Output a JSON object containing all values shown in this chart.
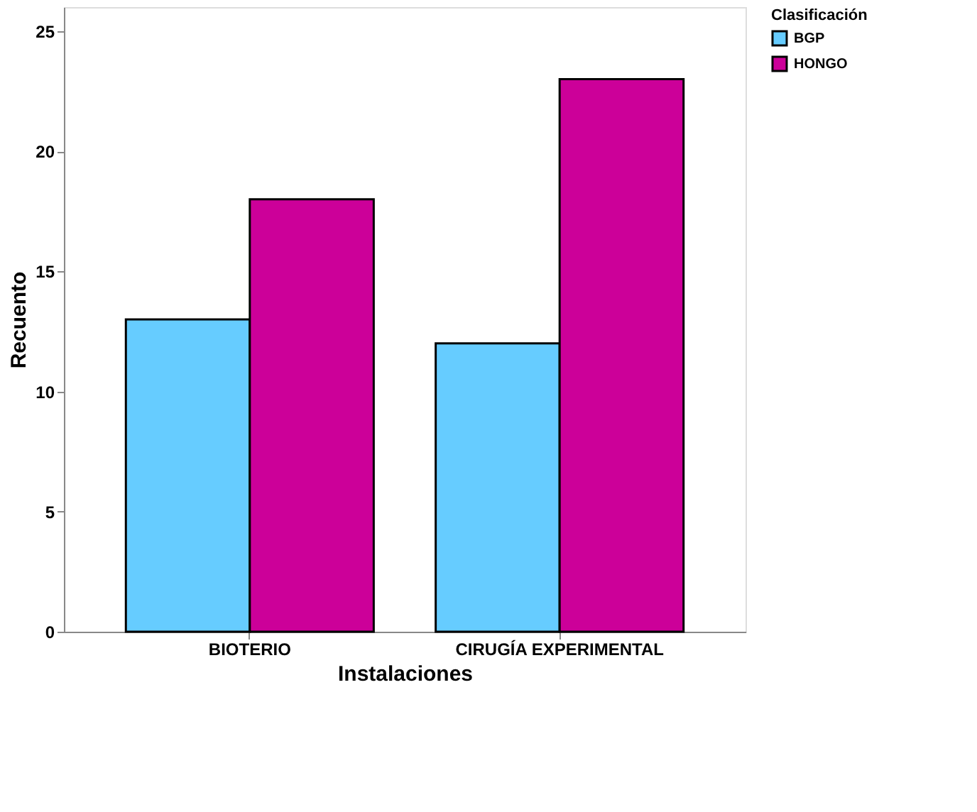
{
  "chart_data": {
    "type": "bar",
    "xlabel": "Instalaciones",
    "ylabel": "Recuento",
    "legend_title": "Clasificación",
    "categories": [
      "BIOTERIO",
      "CIRUGÍA EXPERIMENTAL"
    ],
    "series": [
      {
        "name": "BGP",
        "color": "#66ccff",
        "values": [
          13,
          12
        ]
      },
      {
        "name": "HONGO",
        "color": "#cc0099",
        "values": [
          18,
          23
        ]
      }
    ],
    "ylim": [
      0,
      26
    ],
    "yticks": [
      0,
      5,
      10,
      15,
      20,
      25
    ],
    "grid": false,
    "legend": "top right"
  }
}
